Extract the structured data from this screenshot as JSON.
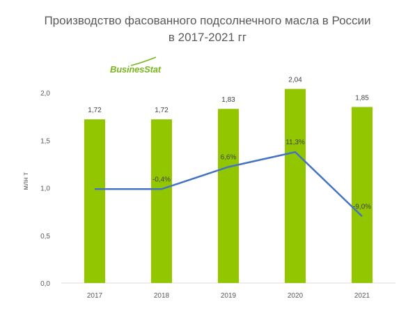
{
  "chart_data": {
    "type": "bar",
    "title_line1": "Производство фасованного подсолнечного масла в России",
    "title_line2": "в 2017-2021 гг",
    "ylabel": "млн т",
    "ylim": [
      0,
      2.0
    ],
    "yticks": [
      "0,0",
      "0,5",
      "1,0",
      "1,5",
      "2,0"
    ],
    "categories": [
      "2017",
      "2018",
      "2019",
      "2020",
      "2021"
    ],
    "values": [
      1.72,
      1.72,
      1.83,
      2.04,
      1.85
    ],
    "value_labels": [
      "1,72",
      "1,72",
      "1,83",
      "2,04",
      "1,85"
    ],
    "growth_line": {
      "values": [
        null,
        -0.4,
        6.6,
        11.3,
        -9.0
      ],
      "labels": [
        "",
        "-0,4%",
        "6,6%",
        "11,3%",
        "-9,0%"
      ]
    },
    "bar_color": "#92c700",
    "line_color": "#4472c4"
  },
  "logo": {
    "text": "BusinesStat"
  }
}
